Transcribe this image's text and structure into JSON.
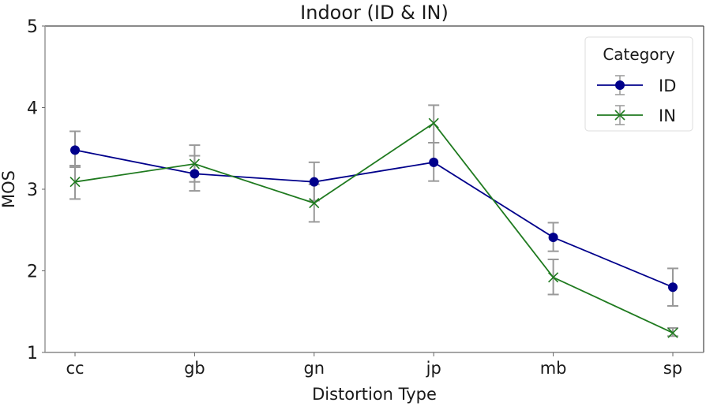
{
  "chart_data": {
    "type": "line",
    "title": "Indoor (ID & IN)",
    "xlabel": "Distortion Type",
    "ylabel": "MOS",
    "categories": [
      "cc",
      "gb",
      "gn",
      "jp",
      "mb",
      "sp"
    ],
    "ylim": [
      1,
      5
    ],
    "yticks": [
      "1",
      "2",
      "3",
      "4",
      "5"
    ],
    "grid": false,
    "legend": {
      "title": "Category",
      "placement": "top-right"
    },
    "series": [
      {
        "name": "ID",
        "color": "#00008b",
        "marker": "circle",
        "values": [
          3.48,
          3.19,
          3.09,
          3.33,
          2.41,
          1.8
        ],
        "err_low": [
          3.27,
          2.98,
          2.86,
          3.1,
          2.24,
          1.57
        ],
        "err_high": [
          3.71,
          3.41,
          3.33,
          3.57,
          2.59,
          2.03
        ]
      },
      {
        "name": "IN",
        "color": "#1f7a1f",
        "marker": "x",
        "values": [
          3.09,
          3.31,
          2.83,
          3.81,
          1.92,
          1.24
        ],
        "err_low": [
          2.88,
          3.09,
          2.6,
          3.57,
          1.71,
          1.2
        ],
        "err_high": [
          3.29,
          3.54,
          3.06,
          4.03,
          2.14,
          1.3
        ]
      }
    ],
    "errorbar_color": "#999999"
  }
}
